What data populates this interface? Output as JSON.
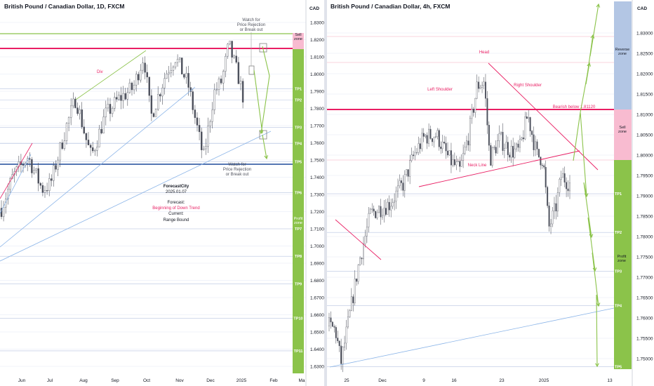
{
  "left_chart": {
    "title": "British Pound / Canadian Dollar, 1D, FXCM",
    "currency": "CAD",
    "y_ticks": [
      1.83,
      1.82,
      1.81,
      1.8,
      1.79,
      1.78,
      1.77,
      1.76,
      1.75,
      1.74,
      1.73,
      1.72,
      1.71,
      1.7,
      1.69,
      1.68,
      1.67,
      1.66,
      1.65,
      1.64,
      1.63
    ],
    "x_labels": [
      "Jun",
      "Jul",
      "Aug",
      "Sep",
      "Oct",
      "Nov",
      "Dec",
      "2025",
      "Feb",
      "Ma"
    ],
    "annotations": {
      "div": "Div",
      "watch_top_1": "Watch for",
      "watch_top_2": "Price Rejection",
      "watch_top_3": "or Break out",
      "watch_bot_1": "Watch for",
      "watch_bot_2": "Price Rejection",
      "watch_bot_3": "or Break out"
    },
    "forecast_box": {
      "brand": "ForecastCity",
      "date": "2025.01.07",
      "forecast_label": "Forecast:",
      "forecast_value": "Beginning of Down Trend",
      "current_label": "Current:",
      "current_value": "Range Bound"
    },
    "zones": {
      "sell_1": "Sell",
      "sell_2": "zone",
      "profit_1": "Profit",
      "profit_2": "zone",
      "tp": [
        "TP1",
        "TP2",
        "TP3",
        "TP4",
        "TP5",
        "TP6",
        "TP7",
        "TP8",
        "TP9",
        "TP10",
        "TP11"
      ]
    }
  },
  "right_chart": {
    "title": "British Pound / Canadian Dollar, 4h, FXCM",
    "currency": "CAD",
    "y_ticks": [
      1.83,
      1.825,
      1.82,
      1.815,
      1.81,
      1.805,
      1.8,
      1.795,
      1.79,
      1.785,
      1.78,
      1.775,
      1.77,
      1.765,
      1.76,
      1.755,
      1.75
    ],
    "x_labels": [
      "25",
      "Dec",
      "9",
      "16",
      "23",
      "2025",
      "13"
    ],
    "annotations": {
      "head": "Head",
      "left_shoulder": "Left Shoulder",
      "right_shoulder": "Right Shoulder",
      "neck_line": "Neck Line",
      "bearish": "Bearish below  1.81120"
    },
    "zones": {
      "reverse_1": "Reverse",
      "reverse_2": "zone",
      "sell_1": "Sell",
      "sell_2": "zone",
      "profit_1": "Profit",
      "profit_2": "zone",
      "tp": [
        "TP1",
        "TP2",
        "TP3",
        "TP4",
        "TP5"
      ]
    }
  },
  "colors": {
    "bull": "#26a69a",
    "bear": "#4a4e5a",
    "candle": "#50535e",
    "resistance": "#e91e63",
    "support": "#2962ff",
    "trend": "#8ab4e8",
    "green_line": "#8bc34a",
    "forecast_arrow": "#8bc34a",
    "profit_zone": "#8bc34a",
    "sell_zone": "#f8bbd0",
    "reverse_zone": "#b3c6e4"
  }
}
